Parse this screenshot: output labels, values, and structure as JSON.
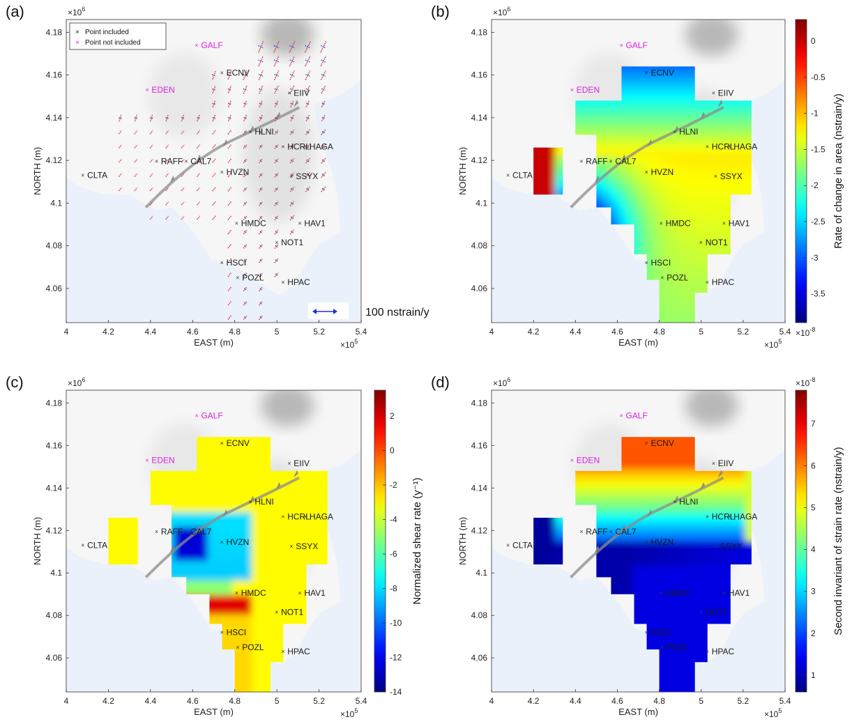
{
  "chart_data": [
    {
      "panel": "(a)",
      "type": "scatter",
      "xlabel": "EAST (m)",
      "ylabel": "NORTH (m)",
      "x_exponent": "×10^5",
      "y_exponent": "×10^6",
      "xlim": [
        400000,
        540000
      ],
      "ylim": [
        4044000,
        4186000
      ],
      "xticks": [
        "4",
        "4.2",
        "4.4",
        "4.6",
        "4.8",
        "5",
        "5.2",
        "5.4"
      ],
      "yticks": [
        "4.06",
        "4.08",
        "4.1",
        "4.12",
        "4.14",
        "4.16",
        "4.18"
      ],
      "legend": {
        "placement": "top-left",
        "entries": [
          {
            "label": "Point included",
            "color": "#222222"
          },
          {
            "label": "Point not included",
            "color": "#e020e0"
          }
        ]
      },
      "scale_label": "100 nstrain/y",
      "colorbar": null,
      "stations": [
        {
          "name": "ECNV",
          "x": 474000,
          "y": 4161000,
          "included": true
        },
        {
          "name": "EIIV",
          "x": 506000,
          "y": 4151500,
          "included": true
        },
        {
          "name": "HLNI",
          "x": 487500,
          "y": 4133500,
          "included": true
        },
        {
          "name": "HCRL",
          "x": 503000,
          "y": 4126500,
          "included": true
        },
        {
          "name": "HAGA",
          "x": 513500,
          "y": 4126500,
          "included": true
        },
        {
          "name": "RAFF",
          "x": 443000,
          "y": 4119500,
          "included": true
        },
        {
          "name": "CAL7",
          "x": 457000,
          "y": 4119500,
          "included": true
        },
        {
          "name": "HVZN",
          "x": 474000,
          "y": 4114500,
          "included": true
        },
        {
          "name": "SSYX",
          "x": 507000,
          "y": 4112500,
          "included": true
        },
        {
          "name": "CLTA",
          "x": 408000,
          "y": 4113000,
          "included": true
        },
        {
          "name": "HMDC",
          "x": 481000,
          "y": 4090500,
          "included": true
        },
        {
          "name": "HAV1",
          "x": 511000,
          "y": 4090500,
          "included": true
        },
        {
          "name": "NOT1",
          "x": 500000,
          "y": 4081500,
          "included": true
        },
        {
          "name": "HSCI",
          "x": 474000,
          "y": 4072000,
          "included": true
        },
        {
          "name": "POZL",
          "x": 481500,
          "y": 4065000,
          "included": true
        },
        {
          "name": "HPAC",
          "x": 503000,
          "y": 4063000,
          "included": true
        },
        {
          "name": "GALF",
          "x": 462000,
          "y": 4174000,
          "included": false
        },
        {
          "name": "EDEN",
          "x": 438500,
          "y": 4153000,
          "included": false
        }
      ]
    },
    {
      "panel": "(b)",
      "type": "heatmap",
      "xlabel": "EAST (m)",
      "ylabel": "NORTH (m)",
      "x_exponent": "×10^5",
      "y_exponent": "×10^6",
      "xlim": [
        400000,
        540000
      ],
      "ylim": [
        4044000,
        4186000
      ],
      "xticks": [
        "4",
        "4.2",
        "4.4",
        "4.6",
        "4.8",
        "5",
        "5.2",
        "5.4"
      ],
      "yticks": [
        "4.06",
        "4.08",
        "4.1",
        "4.12",
        "4.14",
        "4.16",
        "4.18"
      ],
      "colorbar": {
        "label": "Rate of change in area  (nstrain/y)",
        "exponent": "×10^-8",
        "range": [
          -3.9,
          0.3
        ],
        "ticks": [
          0,
          -0.5,
          -1,
          -1.5,
          -2,
          -2.5,
          -3,
          -3.5
        ],
        "tick_labels": [
          "0",
          "-0.5",
          "-1",
          "-1.5",
          "-2",
          "-2.5",
          "-3",
          "-3.5"
        ],
        "colormap": "jet"
      }
    },
    {
      "panel": "(c)",
      "type": "heatmap",
      "xlabel": "EAST (m)",
      "ylabel": "NORTH (m)",
      "x_exponent": "×10^5",
      "y_exponent": "×10^6",
      "xlim": [
        400000,
        540000
      ],
      "ylim": [
        4044000,
        4186000
      ],
      "xticks": [
        "4",
        "4.2",
        "4.4",
        "4.6",
        "4.8",
        "5",
        "5.2",
        "5.4"
      ],
      "yticks": [
        "4.06",
        "4.08",
        "4.1",
        "4.12",
        "4.14",
        "4.16",
        "4.18"
      ],
      "colorbar": {
        "label": "Normalized  shear rate  (y⁻¹)",
        "exponent": "",
        "range": [
          -14,
          3.5
        ],
        "ticks": [
          2,
          0,
          -2,
          -4,
          -6,
          -8,
          -10,
          -12,
          -14
        ],
        "tick_labels": [
          "2",
          "0",
          "-2",
          "-4",
          "-6",
          "-8",
          "-10",
          "-12",
          "-14"
        ],
        "colormap": "jet"
      }
    },
    {
      "panel": "(d)",
      "type": "heatmap",
      "xlabel": "EAST (m)",
      "ylabel": "NORTH (m)",
      "x_exponent": "×10^5",
      "y_exponent": "×10^6",
      "xlim": [
        400000,
        540000
      ],
      "ylim": [
        4044000,
        4186000
      ],
      "xticks": [
        "4",
        "4.2",
        "4.4",
        "4.6",
        "4.8",
        "5",
        "5.2",
        "5.4"
      ],
      "yticks": [
        "4.06",
        "4.08",
        "4.1",
        "4.12",
        "4.14",
        "4.16",
        "4.18"
      ],
      "colorbar": {
        "label": "Second invariant of strain rate  (nstrain/y)",
        "exponent": "×10^-8",
        "range": [
          0.6,
          7.8
        ],
        "ticks": [
          1,
          2,
          3,
          4,
          5,
          6,
          7
        ],
        "tick_labels": [
          "1",
          "2",
          "3",
          "4",
          "5",
          "6",
          "7"
        ],
        "colormap": "jet"
      }
    }
  ]
}
